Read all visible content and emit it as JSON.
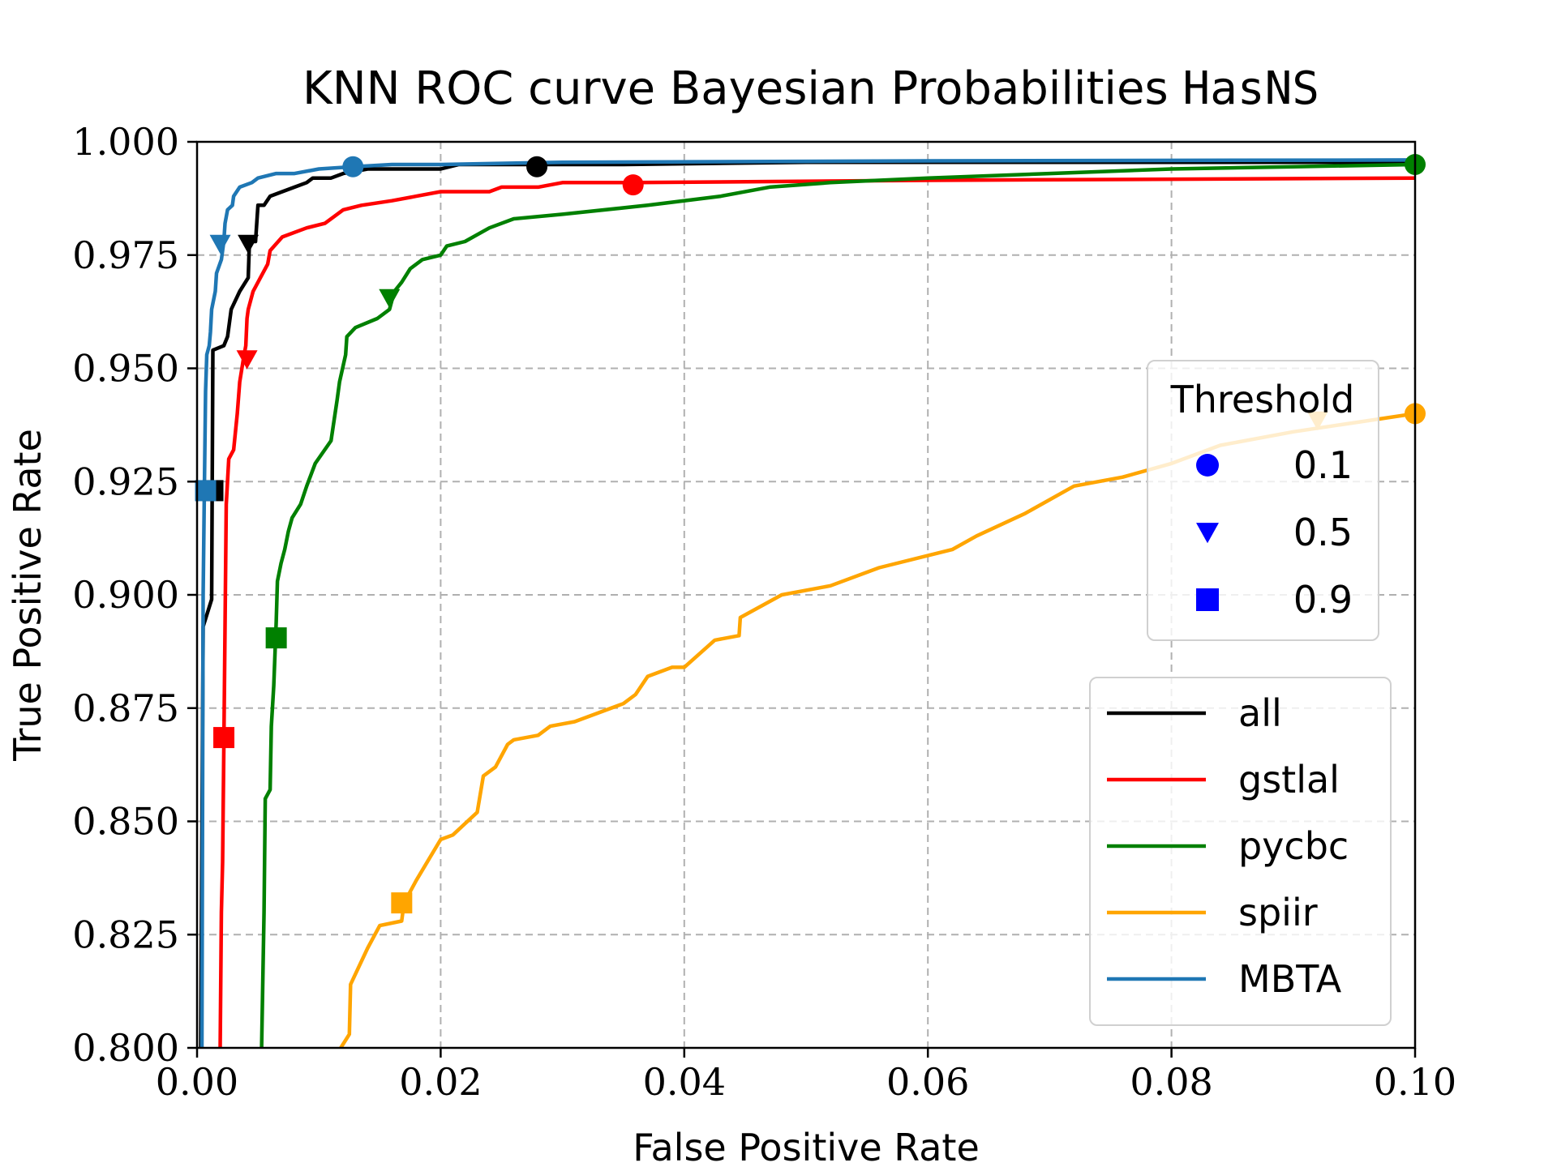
{
  "chart_data": {
    "type": "line",
    "title": "KNN ROC curve Bayesian Probabilities ",
    "title_code": "HasNS",
    "xlabel": "False Positive Rate",
    "ylabel": "True Positive Rate",
    "xlim": [
      0.0,
      0.1
    ],
    "ylim": [
      0.8,
      1.0
    ],
    "grid": true,
    "x_ticks": [
      0.0,
      0.02,
      0.04,
      0.06,
      0.08,
      0.1
    ],
    "x_tick_labels": [
      "0.00",
      "0.02",
      "0.04",
      "0.06",
      "0.08",
      "0.10"
    ],
    "y_ticks": [
      0.8,
      0.825,
      0.85,
      0.875,
      0.9,
      0.925,
      0.95,
      0.975,
      1.0
    ],
    "y_tick_labels": [
      "0.800",
      "0.825",
      "0.850",
      "0.875",
      "0.900",
      "0.925",
      "0.950",
      "0.975",
      "1.000"
    ],
    "series_legend": {
      "placement": "lower-right",
      "entries": [
        "all",
        "gstlal",
        "pycbc",
        "spiir",
        "MBTA"
      ]
    },
    "threshold_legend": {
      "placement": "center-right",
      "title": "Threshold",
      "marker_color": "#0000ff",
      "entries": [
        {
          "label": "0.1",
          "marker": "circle"
        },
        {
          "label": "0.5",
          "marker": "triangle-down"
        },
        {
          "label": "0.9",
          "marker": "square"
        }
      ]
    },
    "series": [
      {
        "name": "all",
        "color": "#000000",
        "points": [
          [
            0.0003,
            0.8
          ],
          [
            0.0005,
            0.893
          ],
          [
            0.0012,
            0.899
          ],
          [
            0.0013,
            0.954
          ],
          [
            0.0022,
            0.955
          ],
          [
            0.0025,
            0.957
          ],
          [
            0.0028,
            0.963
          ],
          [
            0.0035,
            0.967
          ],
          [
            0.0042,
            0.97
          ],
          [
            0.0043,
            0.978
          ],
          [
            0.0048,
            0.978
          ],
          [
            0.005,
            0.986
          ],
          [
            0.0055,
            0.986
          ],
          [
            0.006,
            0.988
          ],
          [
            0.007,
            0.989
          ],
          [
            0.008,
            0.99
          ],
          [
            0.009,
            0.991
          ],
          [
            0.0095,
            0.992
          ],
          [
            0.011,
            0.992
          ],
          [
            0.012,
            0.993
          ],
          [
            0.014,
            0.994
          ],
          [
            0.016,
            0.994
          ],
          [
            0.02,
            0.994
          ],
          [
            0.0215,
            0.995
          ],
          [
            0.024,
            0.995
          ],
          [
            0.026,
            0.995
          ],
          [
            0.028,
            0.995
          ],
          [
            0.035,
            0.995
          ],
          [
            0.05,
            0.9955
          ],
          [
            0.1,
            0.9955
          ]
        ],
        "markers": [
          {
            "threshold": 0.1,
            "x": 0.0279,
            "y": 0.9945
          },
          {
            "threshold": 0.5,
            "x": 0.0042,
            "y": 0.9775
          },
          {
            "threshold": 0.9,
            "x": 0.0013,
            "y": 0.923
          }
        ]
      },
      {
        "name": "gstlal",
        "color": "#ff0000",
        "points": [
          [
            0.0019,
            0.8
          ],
          [
            0.002,
            0.83
          ],
          [
            0.0021,
            0.841
          ],
          [
            0.0022,
            0.866
          ],
          [
            0.0023,
            0.893
          ],
          [
            0.0024,
            0.92
          ],
          [
            0.0026,
            0.93
          ],
          [
            0.003,
            0.932
          ],
          [
            0.0033,
            0.94
          ],
          [
            0.0035,
            0.947
          ],
          [
            0.0038,
            0.952
          ],
          [
            0.004,
            0.955
          ],
          [
            0.0041,
            0.961
          ],
          [
            0.0042,
            0.963
          ],
          [
            0.0046,
            0.967
          ],
          [
            0.0052,
            0.97
          ],
          [
            0.0058,
            0.973
          ],
          [
            0.006,
            0.976
          ],
          [
            0.007,
            0.979
          ],
          [
            0.009,
            0.981
          ],
          [
            0.0105,
            0.982
          ],
          [
            0.012,
            0.985
          ],
          [
            0.0135,
            0.986
          ],
          [
            0.016,
            0.987
          ],
          [
            0.018,
            0.988
          ],
          [
            0.02,
            0.989
          ],
          [
            0.024,
            0.989
          ],
          [
            0.025,
            0.99
          ],
          [
            0.028,
            0.99
          ],
          [
            0.03,
            0.991
          ],
          [
            0.036,
            0.991
          ],
          [
            0.06,
            0.9915
          ],
          [
            0.1,
            0.992
          ]
        ],
        "markers": [
          {
            "threshold": 0.1,
            "x": 0.0358,
            "y": 0.9905
          },
          {
            "threshold": 0.5,
            "x": 0.0041,
            "y": 0.952
          },
          {
            "threshold": 0.9,
            "x": 0.0022,
            "y": 0.8685
          }
        ]
      },
      {
        "name": "pycbc",
        "color": "#008000",
        "points": [
          [
            0.0053,
            0.8
          ],
          [
            0.0055,
            0.83
          ],
          [
            0.0056,
            0.855
          ],
          [
            0.006,
            0.857
          ],
          [
            0.0061,
            0.871
          ],
          [
            0.0063,
            0.88
          ],
          [
            0.0065,
            0.894
          ],
          [
            0.0066,
            0.903
          ],
          [
            0.0069,
            0.907
          ],
          [
            0.0072,
            0.91
          ],
          [
            0.0075,
            0.914
          ],
          [
            0.0078,
            0.917
          ],
          [
            0.0085,
            0.92
          ],
          [
            0.009,
            0.924
          ],
          [
            0.0097,
            0.929
          ],
          [
            0.011,
            0.934
          ],
          [
            0.0115,
            0.943
          ],
          [
            0.0117,
            0.947
          ],
          [
            0.0122,
            0.953
          ],
          [
            0.0123,
            0.957
          ],
          [
            0.013,
            0.959
          ],
          [
            0.0148,
            0.961
          ],
          [
            0.0158,
            0.963
          ],
          [
            0.0162,
            0.967
          ],
          [
            0.0168,
            0.969
          ],
          [
            0.0175,
            0.972
          ],
          [
            0.0185,
            0.974
          ],
          [
            0.02,
            0.975
          ],
          [
            0.0205,
            0.977
          ],
          [
            0.022,
            0.978
          ],
          [
            0.024,
            0.981
          ],
          [
            0.026,
            0.983
          ],
          [
            0.03,
            0.984
          ],
          [
            0.037,
            0.986
          ],
          [
            0.043,
            0.988
          ],
          [
            0.047,
            0.99
          ],
          [
            0.052,
            0.991
          ],
          [
            0.06,
            0.992
          ],
          [
            0.07,
            0.993
          ],
          [
            0.08,
            0.994
          ],
          [
            0.09,
            0.9945
          ],
          [
            0.1,
            0.995
          ]
        ],
        "markers": [
          {
            "threshold": 0.1,
            "x": 0.1,
            "y": 0.995
          },
          {
            "threshold": 0.5,
            "x": 0.0158,
            "y": 0.9655
          },
          {
            "threshold": 0.9,
            "x": 0.0065,
            "y": 0.8905
          }
        ]
      },
      {
        "name": "spiir",
        "color": "#ffa500",
        "points": [
          [
            0.0118,
            0.8
          ],
          [
            0.0125,
            0.803
          ],
          [
            0.0126,
            0.814
          ],
          [
            0.014,
            0.822
          ],
          [
            0.015,
            0.827
          ],
          [
            0.0168,
            0.828
          ],
          [
            0.017,
            0.832
          ],
          [
            0.018,
            0.837
          ],
          [
            0.02,
            0.846
          ],
          [
            0.021,
            0.847
          ],
          [
            0.023,
            0.852
          ],
          [
            0.0235,
            0.86
          ],
          [
            0.0245,
            0.862
          ],
          [
            0.0255,
            0.867
          ],
          [
            0.026,
            0.868
          ],
          [
            0.028,
            0.869
          ],
          [
            0.029,
            0.871
          ],
          [
            0.031,
            0.872
          ],
          [
            0.035,
            0.876
          ],
          [
            0.036,
            0.878
          ],
          [
            0.037,
            0.882
          ],
          [
            0.039,
            0.884
          ],
          [
            0.04,
            0.884
          ],
          [
            0.0425,
            0.89
          ],
          [
            0.0445,
            0.891
          ],
          [
            0.0446,
            0.895
          ],
          [
            0.048,
            0.9
          ],
          [
            0.052,
            0.902
          ],
          [
            0.056,
            0.906
          ],
          [
            0.062,
            0.91
          ],
          [
            0.064,
            0.913
          ],
          [
            0.068,
            0.918
          ],
          [
            0.072,
            0.924
          ],
          [
            0.076,
            0.926
          ],
          [
            0.08,
            0.929
          ],
          [
            0.084,
            0.933
          ],
          [
            0.09,
            0.936
          ],
          [
            0.095,
            0.938
          ],
          [
            0.1,
            0.94
          ]
        ],
        "markers": [
          {
            "threshold": 0.1,
            "x": 0.1,
            "y": 0.94
          },
          {
            "threshold": 0.5,
            "x": 0.092,
            "y": 0.9385
          },
          {
            "threshold": 0.9,
            "x": 0.0168,
            "y": 0.832
          }
        ]
      },
      {
        "name": "MBTA",
        "color": "#1f77b4",
        "points": [
          [
            0.0004,
            0.8
          ],
          [
            0.0005,
            0.9
          ],
          [
            0.0006,
            0.923
          ],
          [
            0.0007,
            0.945
          ],
          [
            0.0008,
            0.953
          ],
          [
            0.001,
            0.955
          ],
          [
            0.0011,
            0.958
          ],
          [
            0.0012,
            0.963
          ],
          [
            0.0015,
            0.967
          ],
          [
            0.0016,
            0.971
          ],
          [
            0.002,
            0.974
          ],
          [
            0.0022,
            0.978
          ],
          [
            0.0023,
            0.982
          ],
          [
            0.0025,
            0.985
          ],
          [
            0.0029,
            0.986
          ],
          [
            0.003,
            0.988
          ],
          [
            0.0035,
            0.99
          ],
          [
            0.0045,
            0.991
          ],
          [
            0.005,
            0.992
          ],
          [
            0.0065,
            0.993
          ],
          [
            0.008,
            0.993
          ],
          [
            0.01,
            0.994
          ],
          [
            0.0128,
            0.9945
          ],
          [
            0.016,
            0.995
          ],
          [
            0.02,
            0.995
          ],
          [
            0.03,
            0.9955
          ],
          [
            0.06,
            0.9958
          ],
          [
            0.1,
            0.996
          ]
        ],
        "markers": [
          {
            "threshold": 0.1,
            "x": 0.0128,
            "y": 0.9945
          },
          {
            "threshold": 0.5,
            "x": 0.0019,
            "y": 0.9775
          },
          {
            "threshold": 0.9,
            "x": 0.0007,
            "y": 0.923
          }
        ]
      }
    ]
  }
}
